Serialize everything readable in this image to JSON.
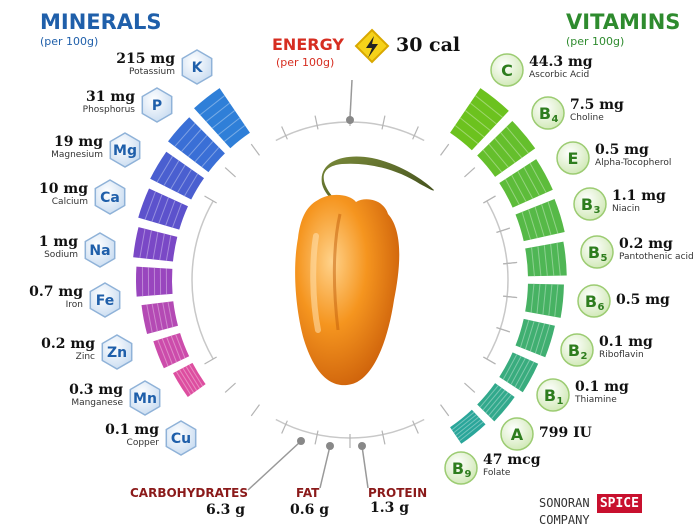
{
  "minerals": {
    "title": "MINERALS",
    "subtitle": "(per 100g)",
    "items": [
      {
        "symbol": "K",
        "amount": "215 mg",
        "name": "Potassium",
        "level": 1.0
      },
      {
        "symbol": "P",
        "amount": "31 mg",
        "name": "Phosphorus",
        "level": 0.92
      },
      {
        "symbol": "Mg",
        "amount": "19 mg",
        "name": "Magnesium",
        "level": 0.8
      },
      {
        "symbol": "Ca",
        "amount": "10 mg",
        "name": "Calcium",
        "level": 0.72
      },
      {
        "symbol": "Na",
        "amount": "1 mg",
        "name": "Sodium",
        "level": 0.65
      },
      {
        "symbol": "Fe",
        "amount": "0.7 mg",
        "name": "Iron",
        "level": 0.55
      },
      {
        "symbol": "Zn",
        "amount": "0.2 mg",
        "name": "Zinc",
        "level": 0.45
      },
      {
        "symbol": "Mn",
        "amount": "0.3 mg",
        "name": "Manganese",
        "level": 0.35
      },
      {
        "symbol": "Cu",
        "amount": "0.1 mg",
        "name": "Copper",
        "level": 0.2
      }
    ]
  },
  "vitamins": {
    "title": "VITAMINS",
    "subtitle": "(per 100g)",
    "items": [
      {
        "letter": "C",
        "index": "",
        "amount": "44.3 mg",
        "name": "Ascorbic Acid",
        "level": 1.0
      },
      {
        "letter": "B",
        "index": "4",
        "amount": "7.5 mg",
        "name": "Choline",
        "level": 0.88
      },
      {
        "letter": "E",
        "index": "",
        "amount": "0.5 mg",
        "name": "Alpha-Tocopherol",
        "level": 0.75
      },
      {
        "letter": "B",
        "index": "3",
        "amount": "1.1 mg",
        "name": "Niacin",
        "level": 0.7
      },
      {
        "letter": "B",
        "index": "5",
        "amount": "0.2 mg",
        "name": "Pantothenic acid",
        "level": 0.62
      },
      {
        "letter": "B",
        "index": "6",
        "amount": "0.5 mg",
        "name": "",
        "level": 0.55
      },
      {
        "letter": "B",
        "index": "2",
        "amount": "0.1 mg",
        "name": "Riboflavin",
        "level": 0.45
      },
      {
        "letter": "B",
        "index": "1",
        "amount": "0.1 mg",
        "name": "Thiamine",
        "level": 0.35
      },
      {
        "letter": "A",
        "index": "",
        "amount": "799 IU",
        "name": "",
        "level": 0.25
      },
      {
        "letter": "B",
        "index": "9",
        "amount": "47 mcg",
        "name": "Folate",
        "level": 0.15
      }
    ]
  },
  "energy": {
    "title": "ENERGY",
    "subtitle": "(per 100g)",
    "value": "30 cal"
  },
  "macros": {
    "carbohydrates": {
      "name": "CARBOHYDRATES",
      "value": "6.3 g"
    },
    "fat": {
      "name": "FAT",
      "value": "0.6 g"
    },
    "protein": {
      "name": "PROTEIN",
      "value": "1.3 g"
    }
  },
  "brand": {
    "left": "SONORAN",
    "middle": "SPICE",
    "right": "COMPANY"
  },
  "colors": {
    "minerals_title": "#1f5faa",
    "vitamins_title": "#2e8b2e",
    "energy_title": "#d62d20",
    "macro_title": "#8b1a1a",
    "hexagon_fill": "#e4eef9",
    "circle_fill": "#e7f4d8",
    "pepper": "#f08a1c"
  }
}
